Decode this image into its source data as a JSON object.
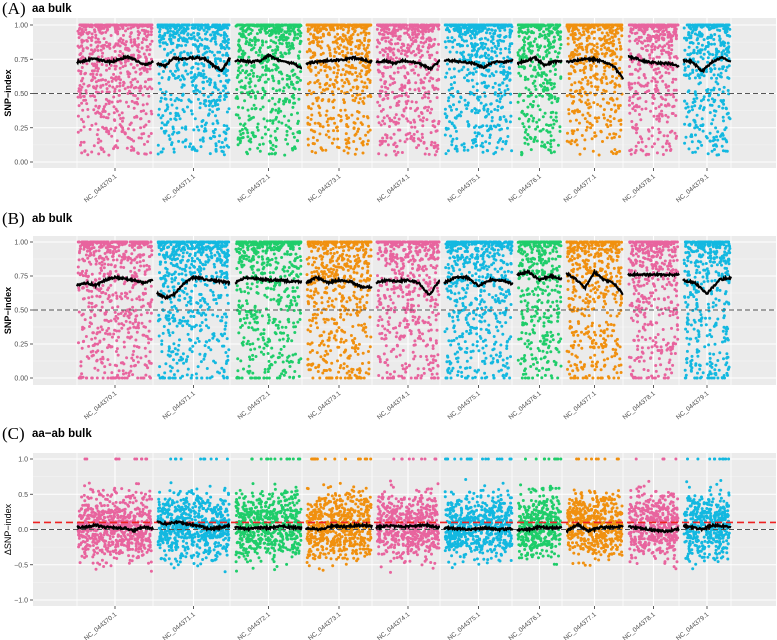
{
  "figure": {
    "panels": [
      {
        "id": "A",
        "label": "(A)",
        "title": "aa bulk"
      },
      {
        "id": "B",
        "label": "(B)",
        "title": "ab bulk"
      },
      {
        "id": "C",
        "label": "(C)",
        "title": "aa−ab bulk"
      }
    ]
  },
  "chart_data": [
    {
      "type": "scatter",
      "panel": "A",
      "title": "aa bulk",
      "xlabel": "",
      "ylabel": "SNP−index",
      "ylim": [
        0,
        1
      ],
      "yticks": [
        "0.00",
        "0.25",
        "0.50",
        "0.75",
        "1.00"
      ],
      "ytick_values": [
        0,
        0.25,
        0.5,
        0.75,
        1.0
      ],
      "reference_lines": [
        {
          "y": 0.5,
          "style": "dashed",
          "color": "#555555"
        }
      ],
      "categories": [
        "NC_044370.1",
        "NC_044371.1",
        "NC_044372.1",
        "NC_044373.1",
        "NC_044374.1",
        "NC_044375.1",
        "NC_044376.1",
        "NC_044377.1",
        "NC_044378.1",
        "NC_044379.1"
      ],
      "point_range": [
        0.05,
        1.0
      ],
      "sliding_window_mean": [
        [
          0.73,
          0.74,
          0.76,
          0.74,
          0.73,
          0.75,
          0.77,
          0.74,
          0.71,
          0.73
        ],
        [
          0.72,
          0.7,
          0.76,
          0.75,
          0.76,
          0.76,
          0.75,
          0.7,
          0.67,
          0.76
        ],
        [
          0.74,
          0.74,
          0.73,
          0.74,
          0.78,
          0.75,
          0.73,
          0.72,
          0.68
        ],
        [
          0.72,
          0.73,
          0.74,
          0.74,
          0.75,
          0.76,
          0.75,
          0.73
        ],
        [
          0.73,
          0.74,
          0.72,
          0.74,
          0.73,
          0.71,
          0.68,
          0.74
        ],
        [
          0.74,
          0.74,
          0.73,
          0.72,
          0.69,
          0.73,
          0.73,
          0.74
        ],
        [
          0.72,
          0.74,
          0.76,
          0.71,
          0.73,
          0.74
        ],
        [
          0.73,
          0.74,
          0.75,
          0.75,
          0.73,
          0.7,
          0.61
        ],
        [
          0.77,
          0.75,
          0.73,
          0.72,
          0.72,
          0.7
        ],
        [
          0.74,
          0.73,
          0.66,
          0.73,
          0.76,
          0.74
        ]
      ]
    },
    {
      "type": "scatter",
      "panel": "B",
      "title": "ab bulk",
      "xlabel": "",
      "ylabel": "SNP−index",
      "ylim": [
        0,
        1
      ],
      "yticks": [
        "0.00",
        "0.25",
        "0.50",
        "0.75",
        "1.00"
      ],
      "ytick_values": [
        0,
        0.25,
        0.5,
        0.75,
        1.0
      ],
      "reference_lines": [
        {
          "y": 0.5,
          "style": "dashed",
          "color": "#555555"
        }
      ],
      "categories": [
        "NC_044370.1",
        "NC_044371.1",
        "NC_044372.1",
        "NC_044373.1",
        "NC_044374.1",
        "NC_044375.1",
        "NC_044376.1",
        "NC_044377.1",
        "NC_044378.1",
        "NC_044379.1"
      ],
      "point_range": [
        0.0,
        1.0
      ],
      "sliding_window_mean": [
        [
          0.68,
          0.7,
          0.68,
          0.72,
          0.74,
          0.73,
          0.72,
          0.7,
          0.72
        ],
        [
          0.62,
          0.59,
          0.62,
          0.7,
          0.74,
          0.73,
          0.72,
          0.71,
          0.7
        ],
        [
          0.7,
          0.74,
          0.73,
          0.72,
          0.72,
          0.71,
          0.71
        ],
        [
          0.7,
          0.74,
          0.7,
          0.72,
          0.71,
          0.67,
          0.67
        ],
        [
          0.7,
          0.72,
          0.71,
          0.72,
          0.7,
          0.61,
          0.72
        ],
        [
          0.7,
          0.74,
          0.74,
          0.68,
          0.72,
          0.72,
          0.69
        ],
        [
          0.76,
          0.78,
          0.72,
          0.75,
          0.73
        ],
        [
          0.77,
          0.73,
          0.66,
          0.78,
          0.72,
          0.7,
          0.62
        ],
        [
          0.76,
          0.76,
          0.76,
          0.76,
          0.76
        ],
        [
          0.72,
          0.7,
          0.62,
          0.72,
          0.74
        ]
      ]
    },
    {
      "type": "scatter",
      "panel": "C",
      "title": "aa−ab bulk",
      "xlabel": "",
      "ylabel": "ΔSNP−index",
      "ylim": [
        -1,
        1
      ],
      "yticks": [
        "−1.0",
        "−0.5",
        "0.0",
        "0.5",
        "1.0"
      ],
      "ytick_values": [
        -1.0,
        -0.5,
        0.0,
        0.5,
        1.0
      ],
      "reference_lines": [
        {
          "y": 0.0,
          "style": "dashed",
          "color": "#555555"
        },
        {
          "y": 0.1,
          "style": "dashed",
          "color": "#ee2222"
        }
      ],
      "categories": [
        "NC_044370.1",
        "NC_044371.1",
        "NC_044372.1",
        "NC_044373.1",
        "NC_044374.1",
        "NC_044375.1",
        "NC_044376.1",
        "NC_044377.1",
        "NC_044378.1",
        "NC_044379.1"
      ],
      "point_range": [
        -0.9,
        1.0
      ],
      "sliding_window_mean": [
        [
          0.03,
          0.04,
          0.06,
          0.03,
          0.03,
          0.02,
          -0.02,
          0.04,
          0.01
        ],
        [
          0.1,
          0.08,
          0.11,
          0.07,
          0.05,
          0.01,
          0.03,
          0.06
        ],
        [
          0.04,
          0.0,
          0.03,
          0.02,
          0.05,
          0.03,
          0.02
        ],
        [
          0.02,
          0.0,
          0.05,
          0.04,
          0.06,
          0.05
        ],
        [
          0.03,
          0.05,
          0.04,
          0.05,
          0.06,
          0.03
        ],
        [
          0.02,
          0.01,
          0.0,
          0.02,
          0.0,
          0.01
        ],
        [
          -0.01,
          0.0,
          0.04,
          0.02,
          0.03
        ],
        [
          -0.03,
          0.07,
          -0.02,
          0.03,
          0.03,
          0.04
        ],
        [
          0.04,
          0.02,
          -0.01,
          -0.03,
          0.01
        ],
        [
          0.05,
          0.03,
          0.0,
          0.06,
          0.05,
          0.04
        ]
      ]
    }
  ],
  "chromosome_colors": [
    "#e8649e",
    "#13b8e0",
    "#1fcd6a",
    "#f0900f",
    "#e8649e",
    "#13b8e0",
    "#1fcd6a",
    "#f0900f",
    "#e8649e",
    "#13b8e0"
  ],
  "colors": {
    "panel_background": "#ebebeb",
    "grid_major": "#ffffff",
    "mean_line": "#000000",
    "baseline_dash": "#555555",
    "threshold_dash": "#ee2222"
  }
}
